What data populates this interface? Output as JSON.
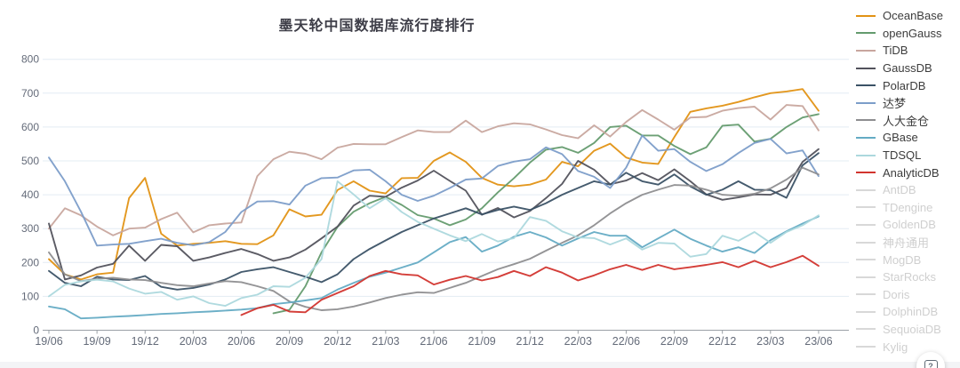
{
  "title": "墨天轮中国数据库流行度排行",
  "help_button": {
    "label": "?"
  },
  "chart_data": {
    "type": "line",
    "title": "墨天轮中国数据库流行度排行",
    "ylabel": "",
    "xlabel": "",
    "ylim": [
      0,
      800
    ],
    "y_ticks": [
      0,
      100,
      200,
      300,
      400,
      500,
      600,
      700,
      800
    ],
    "grid": "horizontal",
    "legend_position": "right",
    "n_points": 49,
    "x_range_note": "monthly points from 19/06 to 23/06",
    "x_tick_labels": [
      "19/06",
      "19/09",
      "19/12",
      "20/03",
      "20/06",
      "20/09",
      "20/12",
      "21/03",
      "21/06",
      "21/09",
      "21/12",
      "22/03",
      "22/06",
      "22/09",
      "22/12",
      "23/03",
      "23/06"
    ],
    "series": [
      {
        "name": "OceanBase",
        "color": "#E29214",
        "active": true,
        "values": [
          210,
          165,
          150,
          165,
          170,
          390,
          450,
          285,
          250,
          255,
          258,
          263,
          255,
          254,
          280,
          357,
          336,
          341,
          414,
          440,
          412,
          404,
          449,
          450,
          500,
          525,
          497,
          450,
          430,
          425,
          430,
          445,
          497,
          484,
          530,
          551,
          510,
          495,
          491,
          570,
          645,
          655,
          663,
          674,
          688,
          700,
          705,
          712,
          648
        ]
      },
      {
        "name": "openGauss",
        "color": "#649B6E",
        "active": true,
        "values": [
          null,
          null,
          null,
          null,
          null,
          null,
          null,
          null,
          null,
          null,
          null,
          null,
          null,
          null,
          50,
          60,
          130,
          230,
          305,
          350,
          375,
          394,
          370,
          340,
          330,
          310,
          327,
          360,
          407,
          449,
          495,
          533,
          541,
          524,
          553,
          600,
          604,
          575,
          575,
          544,
          520,
          540,
          604,
          607,
          557,
          565,
          600,
          628,
          638
        ]
      },
      {
        "name": "TiDB",
        "color": "#C8A69E",
        "active": true,
        "values": [
          300,
          360,
          339,
          306,
          280,
          300,
          303,
          328,
          347,
          289,
          310,
          315,
          318,
          455,
          505,
          527,
          521,
          505,
          539,
          550,
          549,
          549,
          570,
          590,
          585,
          585,
          619,
          585,
          602,
          611,
          608,
          593,
          576,
          567,
          605,
          572,
          615,
          650,
          622,
          592,
          628,
          630,
          648,
          656,
          660,
          622,
          665,
          662,
          590
        ]
      },
      {
        "name": "GaussDB",
        "color": "#52525C",
        "active": true,
        "values": [
          315,
          150,
          162,
          185,
          196,
          250,
          205,
          252,
          248,
          205,
          215,
          228,
          240,
          225,
          205,
          215,
          238,
          271,
          306,
          368,
          397,
          394,
          421,
          442,
          471,
          441,
          412,
          341,
          361,
          333,
          352,
          390,
          432,
          500,
          474,
          431,
          442,
          464,
          443,
          475,
          440,
          401,
          385,
          392,
          401,
          400,
          420,
          497,
          535
        ]
      },
      {
        "name": "PolarDB",
        "color": "#3B5266",
        "active": true,
        "values": [
          175,
          140,
          130,
          158,
          150,
          148,
          160,
          128,
          120,
          125,
          135,
          150,
          172,
          180,
          186,
          172,
          158,
          142,
          165,
          210,
          240,
          265,
          290,
          310,
          330,
          345,
          360,
          342,
          355,
          365,
          355,
          375,
          400,
          420,
          440,
          430,
          465,
          440,
          430,
          460,
          425,
          400,
          415,
          440,
          415,
          414,
          391,
          487,
          523
        ]
      },
      {
        "name": "达梦",
        "color": "#7C9DC9",
        "active": true,
        "values": [
          510,
          440,
          350,
          250,
          253,
          255,
          263,
          270,
          258,
          251,
          260,
          290,
          349,
          380,
          381,
          371,
          427,
          449,
          451,
          472,
          474,
          440,
          400,
          382,
          397,
          420,
          445,
          448,
          485,
          498,
          505,
          540,
          520,
          470,
          453,
          420,
          480,
          575,
          530,
          535,
          497,
          470,
          490,
          523,
          553,
          565,
          522,
          531,
          455
        ]
      },
      {
        "name": "人大金仓",
        "color": "#8E8E90",
        "active": true,
        "values": [
          230,
          165,
          145,
          152,
          155,
          150,
          148,
          140,
          133,
          130,
          138,
          145,
          142,
          130,
          116,
          85,
          69,
          59,
          62,
          70,
          82,
          95,
          105,
          112,
          110,
          125,
          140,
          160,
          180,
          195,
          211,
          235,
          258,
          280,
          310,
          345,
          375,
          400,
          415,
          429,
          427,
          415,
          400,
          397,
          403,
          419,
          445,
          480,
          460
        ]
      },
      {
        "name": "GBase",
        "color": "#64ABC4",
        "active": true,
        "values": [
          70,
          62,
          35,
          37,
          40,
          42,
          45,
          48,
          50,
          53,
          55,
          58,
          61,
          65,
          77,
          82,
          88,
          95,
          120,
          140,
          158,
          170,
          185,
          200,
          230,
          260,
          275,
          232,
          250,
          276,
          290,
          274,
          250,
          271,
          290,
          279,
          279,
          245,
          271,
          297,
          270,
          250,
          232,
          245,
          228,
          266,
          292,
          315,
          336
        ]
      },
      {
        "name": "TDSQL",
        "color": "#ACD8DD",
        "active": true,
        "values": [
          100,
          134,
          144,
          149,
          144,
          123,
          108,
          113,
          90,
          100,
          80,
          72,
          95,
          105,
          130,
          128,
          155,
          210,
          440,
          401,
          360,
          390,
          349,
          320,
          300,
          280,
          263,
          284,
          262,
          272,
          334,
          323,
          292,
          274,
          272,
          253,
          271,
          238,
          258,
          256,
          217,
          225,
          279,
          264,
          290,
          258,
          290,
          310,
          339
        ]
      },
      {
        "name": "AnalyticDB",
        "color": "#D2342E",
        "active": true,
        "values": [
          null,
          null,
          null,
          null,
          null,
          null,
          null,
          null,
          null,
          null,
          null,
          null,
          45,
          65,
          75,
          55,
          53,
          90,
          110,
          130,
          160,
          175,
          165,
          162,
          135,
          149,
          160,
          147,
          157,
          175,
          160,
          186,
          170,
          147,
          162,
          180,
          193,
          178,
          193,
          180,
          186,
          193,
          201,
          186,
          205,
          186,
          201,
          220,
          190
        ]
      },
      {
        "name": "AntDB",
        "color": "#D8D8D8",
        "active": false,
        "values": null
      },
      {
        "name": "TDengine",
        "color": "#D8D8D8",
        "active": false,
        "values": null
      },
      {
        "name": "GoldenDB",
        "color": "#D8D8D8",
        "active": false,
        "values": null
      },
      {
        "name": "神舟通用",
        "color": "#D8D8D8",
        "active": false,
        "values": null
      },
      {
        "name": "MogDB",
        "color": "#D8D8D8",
        "active": false,
        "values": null
      },
      {
        "name": "StarRocks",
        "color": "#D8D8D8",
        "active": false,
        "values": null
      },
      {
        "name": "Doris",
        "color": "#D8D8D8",
        "active": false,
        "values": null
      },
      {
        "name": "DolphinDB",
        "color": "#D8D8D8",
        "active": false,
        "values": null
      },
      {
        "name": "SequoiaDB",
        "color": "#D8D8D8",
        "active": false,
        "values": null
      },
      {
        "name": "Kylig",
        "color": "#D8D8D8",
        "active": false,
        "values": null
      }
    ]
  }
}
